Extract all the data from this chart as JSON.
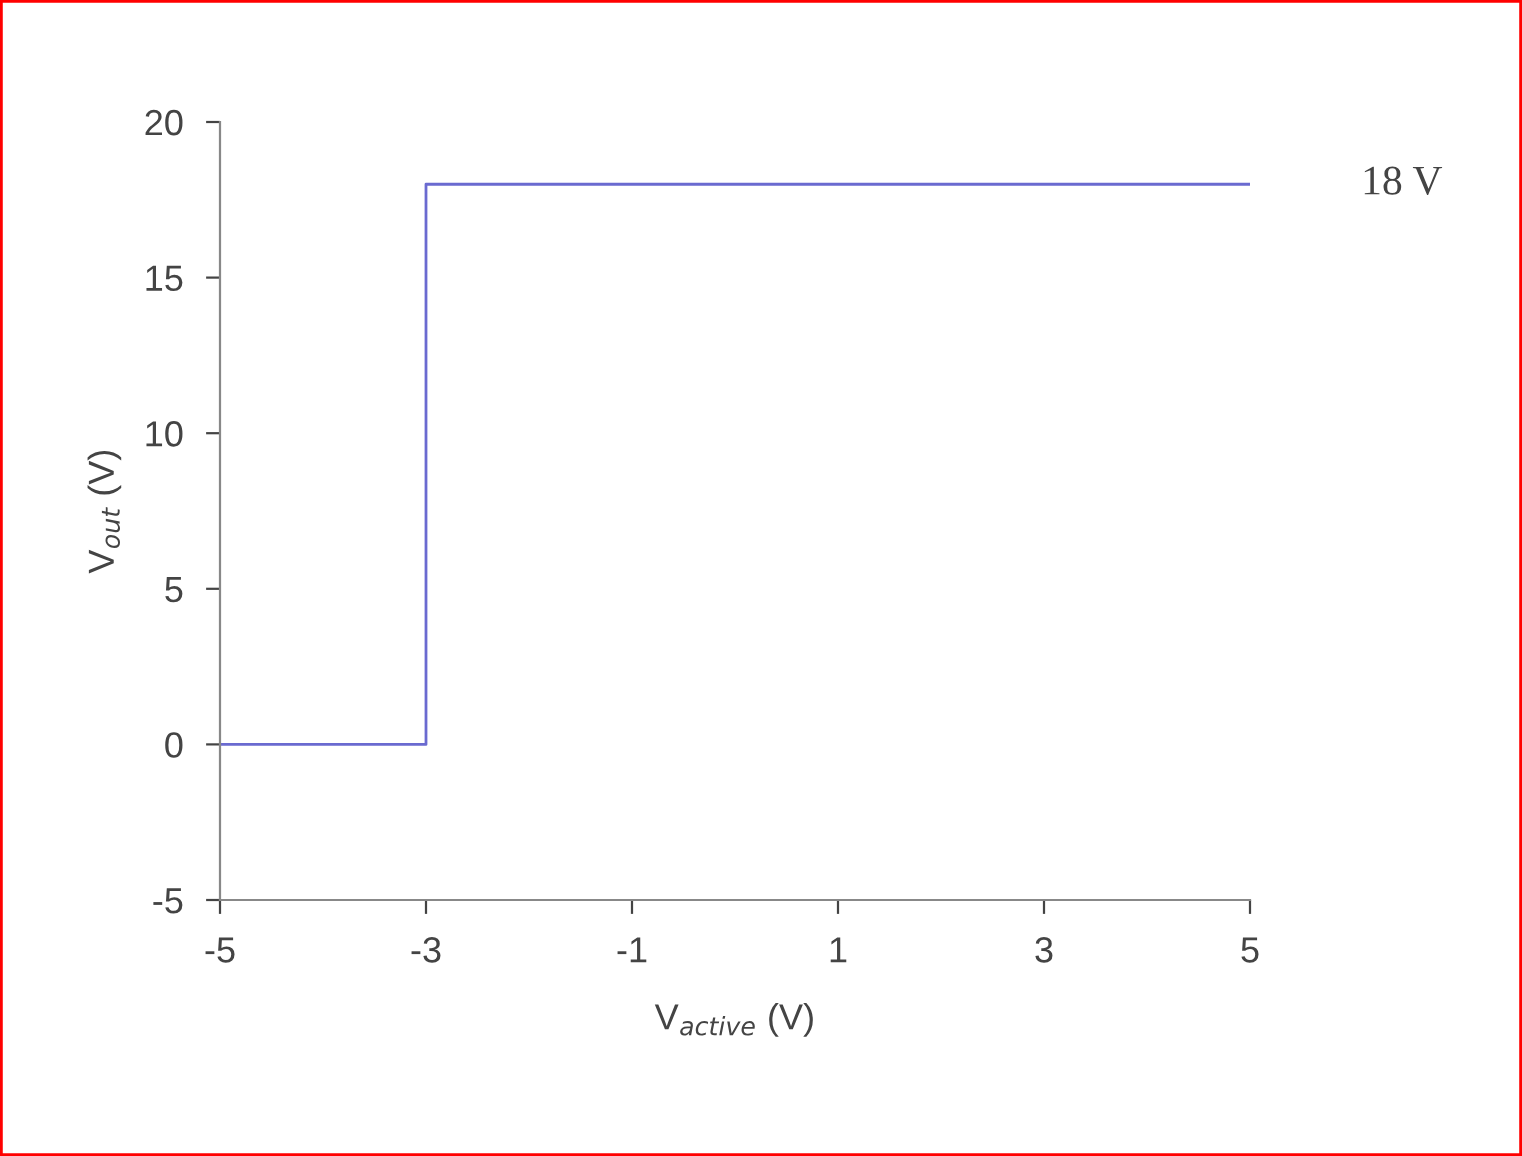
{
  "chart_data": {
    "type": "line",
    "xlabel": "V$_{active}$ (V)",
    "ylabel": "V$_{out}$ (V)",
    "x": [
      -5,
      -3,
      -3,
      5
    ],
    "series": [
      {
        "color": "#6a6ad0",
        "values": [
          0,
          0,
          18,
          18
        ]
      }
    ],
    "xlim": [
      -5,
      5
    ],
    "xticks": [
      -5,
      -3,
      -1,
      1,
      3,
      5
    ],
    "ylim": [
      -5,
      20
    ],
    "yticks": [
      -5,
      0,
      5,
      10,
      15,
      20
    ],
    "grid": false,
    "legend": false,
    "marker": "none",
    "line_style": "solid",
    "annotations": [
      {
        "text": "18 V",
        "x": 5,
        "y": 18
      }
    ]
  }
}
